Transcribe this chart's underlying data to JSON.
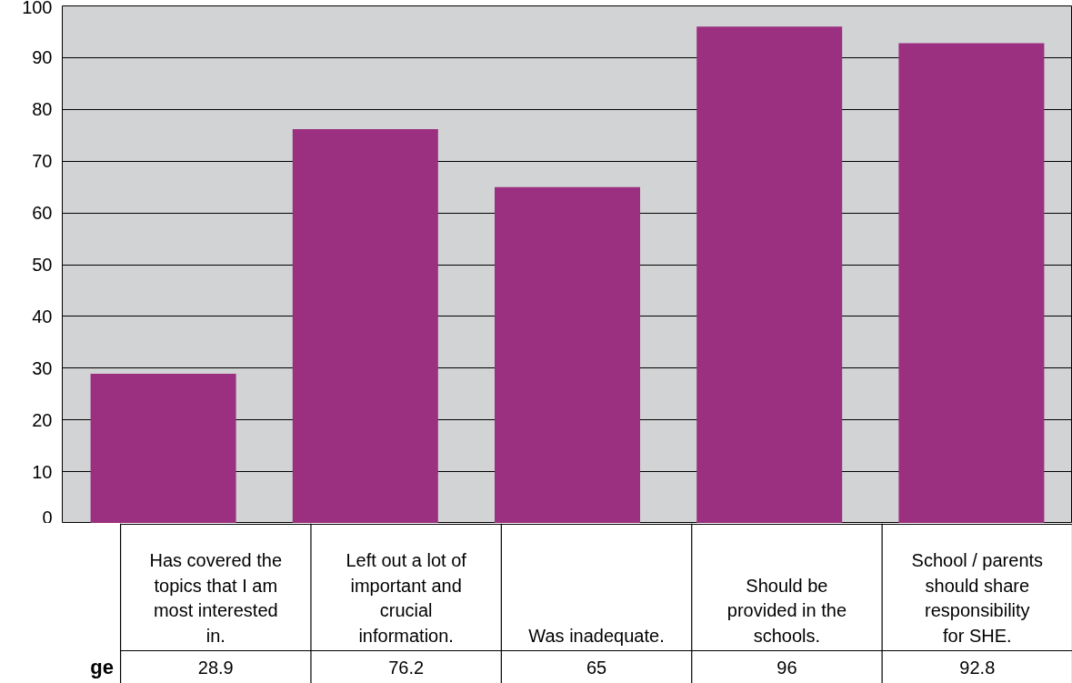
{
  "chart_data": {
    "type": "bar",
    "categories": [
      "Has covered the topics that I am most interested in.",
      "Left out a lot of important and crucial information.",
      "Was inadequate.",
      "Should be provided in the schools.",
      "School / parents should share responsibility for SHE."
    ],
    "values": [
      28.9,
      76.2,
      65,
      96,
      92.8
    ],
    "color": "#9b2f80",
    "ylim": [
      0,
      100
    ],
    "yticks": [
      0,
      10,
      20,
      30,
      40,
      50,
      60,
      70,
      80,
      90,
      100
    ],
    "grid": "y",
    "data_labels": true,
    "annotations": [
      "ge"
    ]
  }
}
